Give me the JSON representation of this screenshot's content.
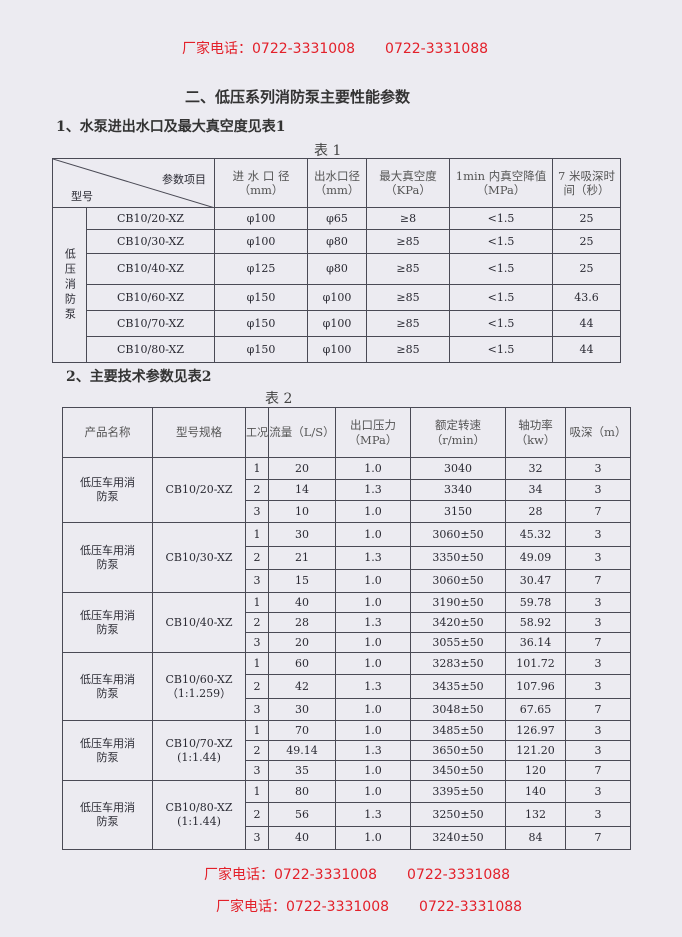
{
  "title": "二、低压系列消防泵主要性能参数",
  "section1": "1、水泵进出水口及最大真空度见表1",
  "table1": {
    "caption": "表 1",
    "corner_top": "参数项目",
    "corner_bottom": "型号",
    "headers": [
      "进 水 口 径（mm）",
      "出水口径（mm）",
      "最大真空度（KPa）",
      "1min 内真空降值（MPa）",
      "7 米吸深时间（秒）"
    ],
    "group": "低压消防泵",
    "rows": [
      [
        "CB10/20-XZ",
        "φ100",
        "φ65",
        "≥8",
        "<1.5",
        "25"
      ],
      [
        "CB10/30-XZ",
        "φ100",
        "φ80",
        "≥85",
        "<1.5",
        "25"
      ],
      [
        "CB10/40-XZ",
        "φ125",
        "φ80",
        "≥85",
        "<1.5",
        "25"
      ],
      [
        "CB10/60-XZ",
        "φ150",
        "φ100",
        "≥85",
        "<1.5",
        "43.6"
      ],
      [
        "CB10/70-XZ",
        "φ150",
        "φ100",
        "≥85",
        "<1.5",
        "44"
      ],
      [
        "CB10/80-XZ",
        "φ150",
        "φ100",
        "≥85",
        "<1.5",
        "44"
      ]
    ]
  },
  "section2": "2、主要技术参数见表2",
  "table2": {
    "caption": "表 2",
    "headers": [
      "产品名称",
      "型号规格",
      "工况",
      "流量（L/S）",
      "出口压力（MPa）",
      "额定转速（r/min）",
      "轴功率（kw）",
      "吸深（m）"
    ],
    "groups": [
      {
        "name": "低压车用消防泵",
        "model": "CB10/20-XZ",
        "rows": [
          [
            "1",
            "20",
            "1.0",
            "3040",
            "32",
            "3"
          ],
          [
            "2",
            "14",
            "1.3",
            "3340",
            "34",
            "3"
          ],
          [
            "3",
            "10",
            "1.0",
            "3150",
            "28",
            "7"
          ]
        ]
      },
      {
        "name": "低压车用消防泵",
        "model": "CB10/30-XZ",
        "rows": [
          [
            "1",
            "30",
            "1.0",
            "3060±50",
            "45.32",
            "3"
          ],
          [
            "2",
            "21",
            "1.3",
            "3350±50",
            "49.09",
            "3"
          ],
          [
            "3",
            "15",
            "1.0",
            "3060±50",
            "30.47",
            "7"
          ]
        ]
      },
      {
        "name": "低压车用消防泵",
        "model": "CB10/40-XZ",
        "rows": [
          [
            "1",
            "40",
            "1.0",
            "3190±50",
            "59.78",
            "3"
          ],
          [
            "2",
            "28",
            "1.3",
            "3420±50",
            "58.92",
            "3"
          ],
          [
            "3",
            "20",
            "1.0",
            "3055±50",
            "36.14",
            "7"
          ]
        ]
      },
      {
        "name": "低压车用消防泵",
        "model": "CB10/60-XZ（1:1.259）",
        "rows": [
          [
            "1",
            "60",
            "1.0",
            "3283±50",
            "101.72",
            "3"
          ],
          [
            "2",
            "42",
            "1.3",
            "3435±50",
            "107.96",
            "3"
          ],
          [
            "3",
            "30",
            "1.0",
            "3048±50",
            "67.65",
            "7"
          ]
        ]
      },
      {
        "name": "低压车用消防泵",
        "model": "CB10/70-XZ (1:1.44)",
        "rows": [
          [
            "1",
            "70",
            "1.0",
            "3485±50",
            "126.97",
            "3"
          ],
          [
            "2",
            "49.14",
            "1.3",
            "3650±50",
            "121.20",
            "3"
          ],
          [
            "3",
            "35",
            "1.0",
            "3450±50",
            "120",
            "7"
          ]
        ]
      },
      {
        "name": "低压车用消防泵",
        "model": "CB10/80-XZ (1:1.44)",
        "rows": [
          [
            "1",
            "80",
            "1.0",
            "3395±50",
            "140",
            "3"
          ],
          [
            "2",
            "56",
            "1.3",
            "3250±50",
            "132",
            "3"
          ],
          [
            "3",
            "40",
            "1.0",
            "3240±50",
            "84",
            "7"
          ]
        ]
      }
    ]
  },
  "watermark": {
    "label": "厂家电话：0722-3331008",
    "phone2": "0722-3331088",
    "color": "#e3202a"
  }
}
